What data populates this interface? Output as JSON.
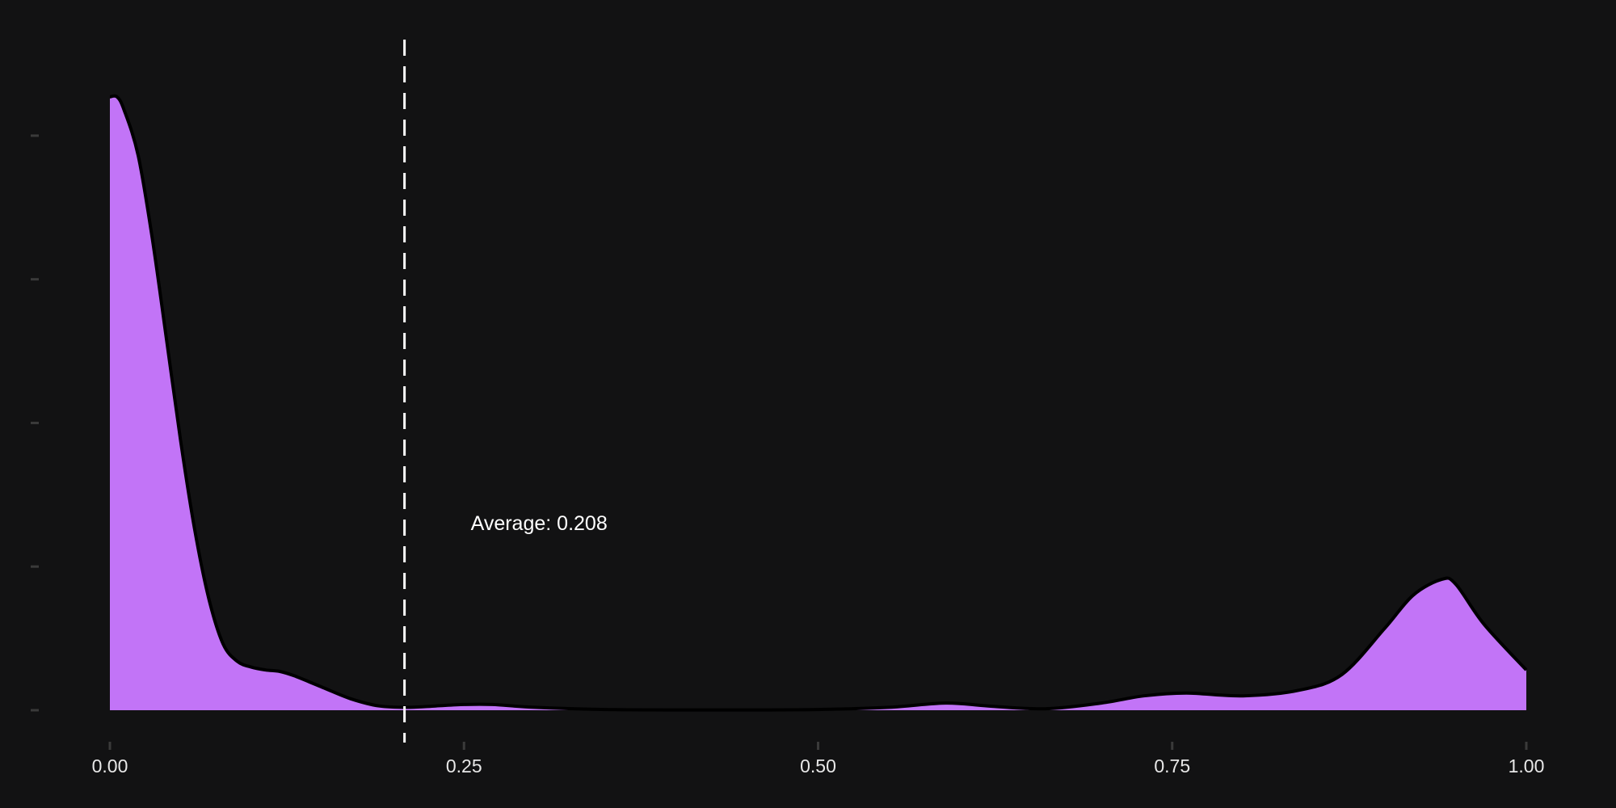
{
  "chart_data": {
    "type": "area",
    "title": "",
    "xlabel": "",
    "ylabel": "",
    "xlim": [
      0,
      1
    ],
    "ylim": [
      0,
      4.5
    ],
    "x_ticks": [
      "0.00",
      "0.25",
      "0.50",
      "0.75",
      "1.00"
    ],
    "x_tick_values": [
      0,
      0.25,
      0.5,
      0.75,
      1.0
    ],
    "y_tick_values": [
      0,
      1,
      2,
      3,
      4
    ],
    "y_tick_labels_visible": false,
    "grid": false,
    "series": [
      {
        "fill_color": "#c274f7",
        "stroke_color": "#000000",
        "x": [
          0.0,
          0.005,
          0.01,
          0.02,
          0.03,
          0.04,
          0.05,
          0.06,
          0.07,
          0.08,
          0.09,
          0.1,
          0.11,
          0.12,
          0.13,
          0.15,
          0.17,
          0.19,
          0.21,
          0.23,
          0.25,
          0.27,
          0.3,
          0.35,
          0.4,
          0.45,
          0.5,
          0.55,
          0.59,
          0.62,
          0.66,
          0.7,
          0.73,
          0.76,
          0.8,
          0.84,
          0.87,
          0.9,
          0.92,
          0.94,
          0.95,
          0.97,
          1.0
        ],
        "y": [
          4.27,
          4.27,
          4.18,
          3.86,
          3.28,
          2.58,
          1.87,
          1.25,
          0.77,
          0.46,
          0.34,
          0.3,
          0.28,
          0.27,
          0.24,
          0.16,
          0.08,
          0.03,
          0.02,
          0.03,
          0.04,
          0.04,
          0.02,
          0.005,
          0.002,
          0.002,
          0.005,
          0.02,
          0.05,
          0.03,
          0.01,
          0.05,
          0.1,
          0.12,
          0.1,
          0.14,
          0.25,
          0.57,
          0.8,
          0.91,
          0.88,
          0.6,
          0.28
        ]
      }
    ],
    "mean_line": {
      "x": 0.208,
      "style": "dashed",
      "color": "#ffffff",
      "label": "Average: 0.208"
    }
  }
}
